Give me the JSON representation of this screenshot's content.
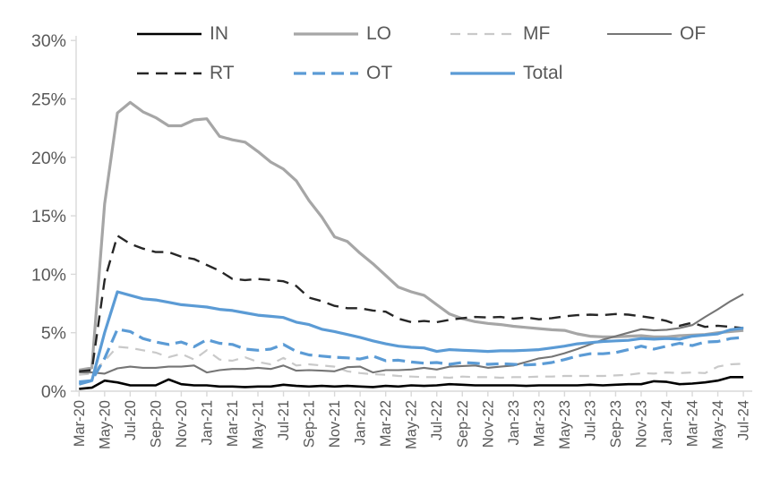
{
  "chart_data": {
    "type": "line",
    "title": "",
    "xlabel": "",
    "ylabel": "",
    "ylim": [
      0,
      30
    ],
    "y_tick_labels": [
      "0%",
      "5%",
      "10%",
      "15%",
      "20%",
      "25%",
      "30%"
    ],
    "y_tick_values": [
      0,
      5,
      10,
      15,
      20,
      25,
      30
    ],
    "x_tick_every": 2,
    "grid": false,
    "legend_position": "top",
    "legend_rows": [
      [
        "IN",
        "LO",
        "MF",
        "OF"
      ],
      [
        "RT",
        "OT",
        "Total"
      ]
    ],
    "x": [
      "Mar-20",
      "Apr-20",
      "May-20",
      "Jun-20",
      "Jul-20",
      "Aug-20",
      "Sep-20",
      "Oct-20",
      "Nov-20",
      "Dec-20",
      "Jan-21",
      "Feb-21",
      "Mar-21",
      "Apr-21",
      "May-21",
      "Jun-21",
      "Jul-21",
      "Aug-21",
      "Sep-21",
      "Oct-21",
      "Nov-21",
      "Dec-21",
      "Jan-22",
      "Feb-22",
      "Mar-22",
      "Apr-22",
      "May-22",
      "Jun-22",
      "Jul-22",
      "Aug-22",
      "Sep-22",
      "Oct-22",
      "Nov-22",
      "Dec-22",
      "Jan-23",
      "Feb-23",
      "Mar-23",
      "Apr-23",
      "May-23",
      "Jun-23",
      "Jul-23",
      "Aug-23",
      "Sep-23",
      "Oct-23",
      "Nov-23",
      "Dec-23",
      "Jan-24",
      "Feb-24",
      "Mar-24",
      "Apr-24",
      "May-24",
      "Jun-24",
      "Jul-24"
    ],
    "series": [
      {
        "name": "IN",
        "color": "#000000",
        "dash": "solid",
        "width": 2.6,
        "values": [
          0.2,
          0.3,
          0.9,
          0.75,
          0.5,
          0.5,
          0.5,
          1.0,
          0.6,
          0.5,
          0.5,
          0.4,
          0.4,
          0.35,
          0.4,
          0.4,
          0.55,
          0.45,
          0.4,
          0.45,
          0.4,
          0.45,
          0.4,
          0.35,
          0.45,
          0.4,
          0.5,
          0.45,
          0.5,
          0.6,
          0.55,
          0.5,
          0.5,
          0.5,
          0.5,
          0.45,
          0.5,
          0.5,
          0.5,
          0.5,
          0.55,
          0.5,
          0.55,
          0.6,
          0.6,
          0.85,
          0.8,
          0.6,
          0.65,
          0.75,
          0.9,
          1.2,
          1.2
        ]
      },
      {
        "name": "LO",
        "color": "#a6a6a6",
        "dash": "solid",
        "width": 3.2,
        "values": [
          1.8,
          2.0,
          16.0,
          23.8,
          24.7,
          23.9,
          23.4,
          22.7,
          22.7,
          23.2,
          23.3,
          21.8,
          21.5,
          21.3,
          20.5,
          19.6,
          19.0,
          18.0,
          16.3,
          14.9,
          13.2,
          12.8,
          11.8,
          10.9,
          9.9,
          8.9,
          8.5,
          8.2,
          7.4,
          6.6,
          6.2,
          5.95,
          5.8,
          5.7,
          5.55,
          5.45,
          5.35,
          5.25,
          5.2,
          4.9,
          4.7,
          4.65,
          4.65,
          4.7,
          4.75,
          4.65,
          4.65,
          4.75,
          4.8,
          4.85,
          5.0,
          5.1,
          5.2
        ]
      },
      {
        "name": "MF",
        "color": "#c9c9c9",
        "dash": "dashed",
        "width": 2.2,
        "values": [
          1.4,
          1.5,
          2.6,
          3.8,
          3.7,
          3.5,
          3.3,
          2.9,
          3.2,
          2.7,
          3.5,
          2.7,
          2.6,
          2.9,
          2.5,
          2.3,
          2.85,
          2.2,
          2.3,
          2.2,
          2.1,
          1.7,
          1.55,
          1.45,
          1.4,
          1.3,
          1.25,
          1.2,
          1.2,
          1.15,
          1.25,
          1.2,
          1.2,
          1.15,
          1.2,
          1.2,
          1.25,
          1.25,
          1.3,
          1.3,
          1.3,
          1.3,
          1.35,
          1.4,
          1.55,
          1.5,
          1.6,
          1.55,
          1.6,
          1.55,
          2.1,
          2.3,
          2.35
        ]
      },
      {
        "name": "OF",
        "color": "#757575",
        "dash": "solid",
        "width": 2.1,
        "values": [
          1.6,
          1.6,
          1.5,
          1.95,
          2.1,
          2.0,
          2.0,
          2.1,
          2.1,
          2.2,
          1.6,
          1.8,
          1.9,
          1.9,
          2.0,
          1.9,
          2.2,
          1.75,
          1.8,
          1.75,
          1.7,
          2.05,
          2.1,
          1.6,
          1.8,
          1.8,
          1.85,
          2.0,
          1.85,
          2.1,
          2.15,
          2.2,
          2.0,
          2.1,
          2.2,
          2.5,
          2.8,
          2.95,
          3.25,
          3.6,
          4.0,
          4.4,
          4.7,
          5.0,
          5.3,
          5.2,
          5.25,
          5.4,
          5.65,
          6.35,
          7.0,
          7.7,
          8.3
        ]
      },
      {
        "name": "RT",
        "color": "#262626",
        "dash": "dashed",
        "width": 2.4,
        "values": [
          1.7,
          1.8,
          9.5,
          13.3,
          12.6,
          12.2,
          11.9,
          11.9,
          11.5,
          11.3,
          10.8,
          10.3,
          9.6,
          9.5,
          9.6,
          9.5,
          9.4,
          9.0,
          8.0,
          7.7,
          7.3,
          7.1,
          7.1,
          6.9,
          6.8,
          6.2,
          5.9,
          6.0,
          5.9,
          6.1,
          6.25,
          6.35,
          6.3,
          6.35,
          6.2,
          6.3,
          6.15,
          6.25,
          6.4,
          6.5,
          6.55,
          6.5,
          6.6,
          6.55,
          6.4,
          6.25,
          6.0,
          5.6,
          5.85,
          5.5,
          5.6,
          5.5,
          5.4
        ]
      },
      {
        "name": "OT",
        "color": "#5b9bd5",
        "dash": "dashed",
        "width": 3.2,
        "values": [
          0.6,
          0.9,
          2.8,
          5.3,
          5.1,
          4.5,
          4.2,
          4.0,
          4.2,
          3.8,
          4.4,
          4.1,
          4.0,
          3.6,
          3.5,
          3.6,
          4.0,
          3.4,
          3.1,
          3.0,
          2.9,
          2.85,
          2.75,
          3.0,
          2.6,
          2.65,
          2.5,
          2.4,
          2.45,
          2.3,
          2.45,
          2.4,
          2.3,
          2.35,
          2.3,
          2.25,
          2.3,
          2.45,
          2.7,
          3.0,
          3.2,
          3.2,
          3.3,
          3.55,
          3.85,
          3.6,
          3.85,
          4.1,
          3.9,
          4.2,
          4.25,
          4.5,
          4.6
        ]
      },
      {
        "name": "Total",
        "color": "#5b9bd5",
        "dash": "solid",
        "width": 3.2,
        "values": [
          0.8,
          0.9,
          5.0,
          8.5,
          8.2,
          7.9,
          7.8,
          7.6,
          7.4,
          7.3,
          7.2,
          7.0,
          6.9,
          6.7,
          6.5,
          6.4,
          6.3,
          5.9,
          5.7,
          5.3,
          5.1,
          4.85,
          4.6,
          4.3,
          4.05,
          3.85,
          3.75,
          3.7,
          3.4,
          3.55,
          3.5,
          3.45,
          3.4,
          3.45,
          3.45,
          3.5,
          3.55,
          3.7,
          3.85,
          4.05,
          4.15,
          4.25,
          4.3,
          4.35,
          4.5,
          4.45,
          4.5,
          4.45,
          4.7,
          4.8,
          4.9,
          5.25,
          5.4
        ]
      }
    ]
  },
  "style": {
    "axis_line_color": "#d9d9d9",
    "tick_color": "#d9d9d9",
    "text_color": "#595959",
    "background": "#ffffff",
    "accent_blue": "#5b9bd5"
  }
}
